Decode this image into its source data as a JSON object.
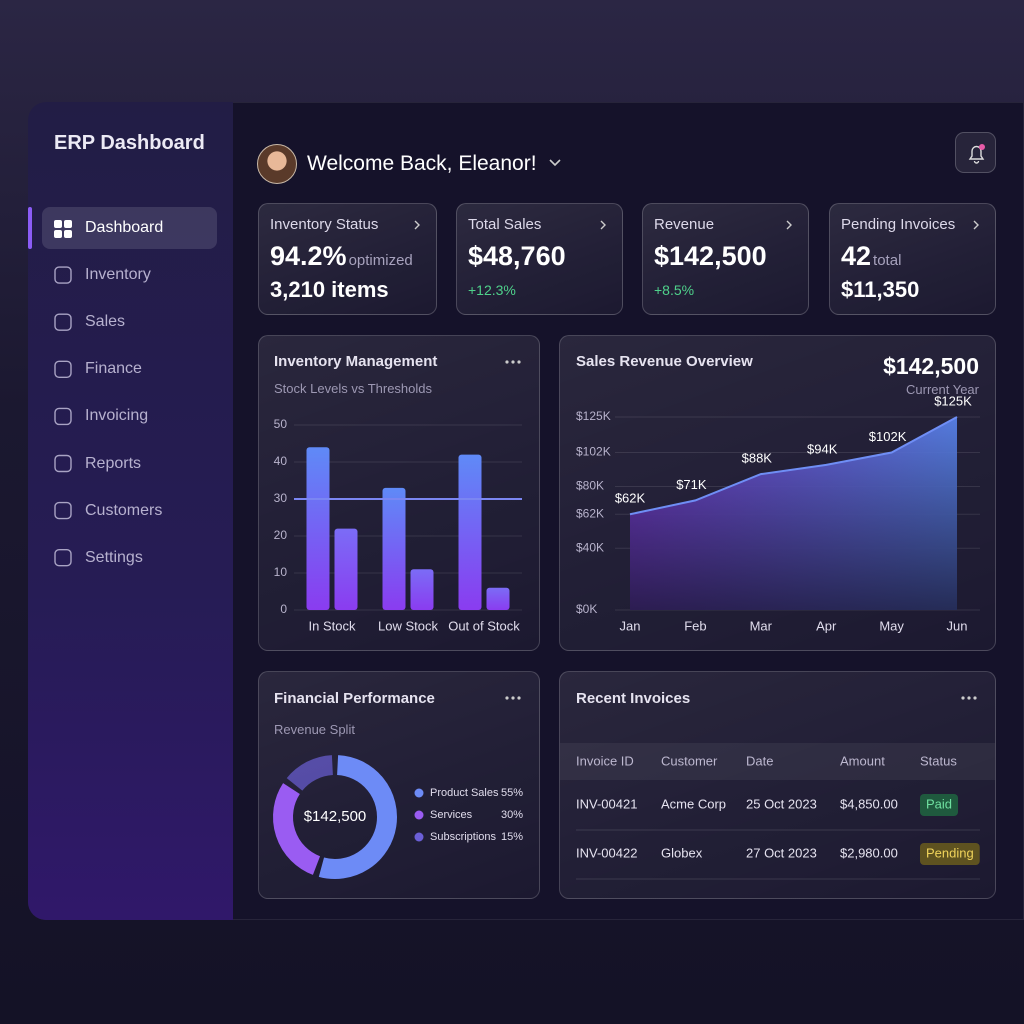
{
  "sidebar": {
    "title": "ERP Dashboard",
    "nav": [
      "Dashboard",
      "Inventory",
      "Sales",
      "Finance",
      "Invoicing",
      "Reports",
      "Customers",
      "Settings"
    ],
    "active": 0
  },
  "header": {
    "greeting": "Welcome Back, Eleanor!"
  },
  "kpis": [
    {
      "title": "Inventory Status",
      "value": "94.2%",
      "note": "optimized",
      "detail": "3,210 items"
    },
    {
      "title": "Total Sales",
      "value": "$48,760",
      "change": "+12.3%"
    },
    {
      "title": "Revenue",
      "value": "$142,500",
      "change": "+8.5%"
    },
    {
      "title": "Pending Invoices",
      "value": "42",
      "note": "total",
      "detail": "$11,350"
    }
  ],
  "chart_data": [
    {
      "type": "bar",
      "title": "Inventory Management",
      "subtitle": "Stock Levels vs Thresholds",
      "categories": [
        "In Stock",
        "Low Stock",
        "Out of Stock"
      ],
      "series": [
        {
          "color": "#5f8af7",
          "values": [
            44,
            33,
            42
          ]
        },
        {
          "color": "#7b6cf6",
          "values": [
            22,
            11,
            6
          ]
        }
      ],
      "threshold": 30,
      "ylim": [
        0,
        50
      ],
      "yticks": [
        0,
        10,
        20,
        30,
        40,
        50
      ],
      "grid": true
    },
    {
      "type": "area",
      "title": "Sales Revenue Overview",
      "total": "$142,500",
      "total_label": "Current Year",
      "categories": [
        "Jan",
        "Feb",
        "Mar",
        "Apr",
        "May",
        "Jun"
      ],
      "values": [
        62,
        71,
        88,
        94,
        102,
        125
      ],
      "value_labels": [
        "$62K",
        "$71K",
        "$88K",
        "$94K",
        "$102K",
        "$125K"
      ],
      "color": "#6f8ef5",
      "ylim": [
        0,
        125
      ],
      "yticks": [
        {
          "value": 0,
          "label": "$0K"
        },
        {
          "value": 40,
          "label": "$40K"
        },
        {
          "value": 62,
          "label": "$62K"
        },
        {
          "value": 80,
          "label": "$80K"
        },
        {
          "value": 102,
          "label": "$102K"
        },
        {
          "value": 125,
          "label": "$125K"
        }
      ],
      "grid": true
    },
    {
      "type": "pie",
      "title": "Financial Performance",
      "subtitle": "Revenue Split",
      "center_label": "$142,500",
      "categories": [
        "Product Sales",
        "Services",
        "Subscriptions"
      ],
      "values": [
        55,
        30,
        15
      ],
      "value_labels": [
        "55%",
        "30%",
        "15%"
      ],
      "colors": [
        "#6d8bf6",
        "#9a5cf2",
        "#6b5fd6"
      ]
    }
  ],
  "invoices": {
    "title": "Recent Invoices",
    "columns": [
      "Invoice ID",
      "Customer",
      "Date",
      "Amount",
      "Status"
    ],
    "rows": [
      [
        "INV-00421",
        "Acme Corp",
        "25 Oct 2023",
        "$4,850.00",
        "Paid"
      ],
      [
        "INV-00422",
        "Globex",
        "27 Oct 2023",
        "$2,980.00",
        "Pending"
      ]
    ]
  }
}
